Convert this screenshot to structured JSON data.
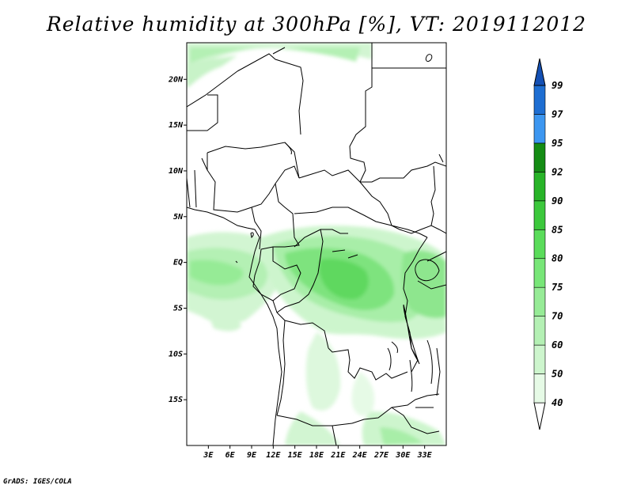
{
  "title": "Relative humidity at 300hPa [%], VT: 2019112012",
  "credit": "GrADS: IGES/COLA",
  "map": {
    "lon_range": [
      0,
      36
    ],
    "lat_range": [
      -20,
      24
    ],
    "lat_ticks": [
      {
        "value": 20,
        "label": "20N"
      },
      {
        "value": 15,
        "label": "15N"
      },
      {
        "value": 10,
        "label": "10N"
      },
      {
        "value": 5,
        "label": "5N"
      },
      {
        "value": 0,
        "label": "EQ"
      },
      {
        "value": -5,
        "label": "5S"
      },
      {
        "value": -10,
        "label": "10S"
      },
      {
        "value": -15,
        "label": "15S"
      }
    ],
    "lon_ticks": [
      {
        "value": 3,
        "label": "3E"
      },
      {
        "value": 6,
        "label": "6E"
      },
      {
        "value": 9,
        "label": "9E"
      },
      {
        "value": 12,
        "label": "12E"
      },
      {
        "value": 15,
        "label": "15E"
      },
      {
        "value": 18,
        "label": "18E"
      },
      {
        "value": 21,
        "label": "21E"
      },
      {
        "value": 24,
        "label": "24E"
      },
      {
        "value": 27,
        "label": "27E"
      },
      {
        "value": 30,
        "label": "30E"
      },
      {
        "value": 33,
        "label": "33E"
      }
    ]
  },
  "colorbar": {
    "levels": [
      {
        "label": "40",
        "color": "#e6fae6"
      },
      {
        "label": "50",
        "color": "#cdf5cd"
      },
      {
        "label": "60",
        "color": "#b4f0b4"
      },
      {
        "label": "70",
        "color": "#96eb96"
      },
      {
        "label": "75",
        "color": "#78e678"
      },
      {
        "label": "80",
        "color": "#5adc5a"
      },
      {
        "label": "85",
        "color": "#3cc83c"
      },
      {
        "label": "90",
        "color": "#28b428"
      },
      {
        "label": "92",
        "color": "#148c14"
      },
      {
        "label": "95",
        "color": "#3c96f0"
      },
      {
        "label": "97",
        "color": "#1e6ed2"
      },
      {
        "label": "99",
        "color": "#1450b4"
      }
    ],
    "below_color": "#ffffff"
  }
}
